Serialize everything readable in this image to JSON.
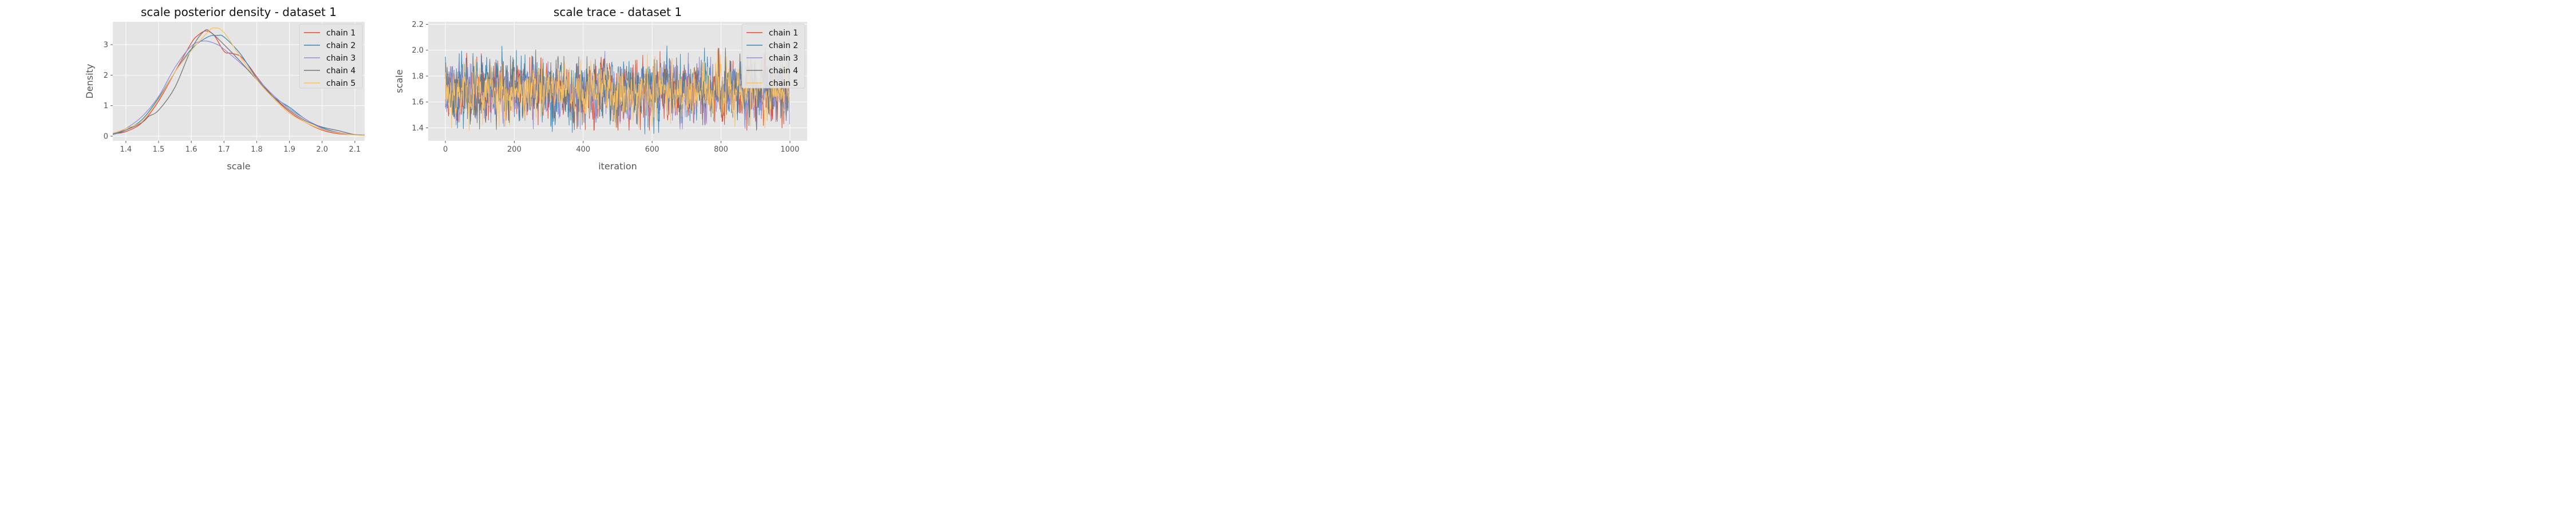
{
  "colors": {
    "background": "#e5e5e5",
    "grid": "#ffffff",
    "series": [
      "#e24a33",
      "#348abd",
      "#988ed5",
      "#777777",
      "#fbc15e"
    ]
  },
  "chart_data": [
    {
      "type": "line",
      "title": "scale posterior density - dataset 1",
      "xlabel": "scale",
      "ylabel": "Density",
      "xlim": [
        1.36,
        2.13
      ],
      "ylim": [
        -0.15,
        3.75
      ],
      "xticks": [
        "1.4",
        "1.5",
        "1.6",
        "1.7",
        "1.8",
        "1.9",
        "2.0",
        "2.1"
      ],
      "yticks": [
        "0",
        "1",
        "2",
        "3"
      ],
      "grid": true,
      "legend": "top-right",
      "series": [
        {
          "name": "chain 1",
          "x": [
            1.36,
            1.4,
            1.45,
            1.5,
            1.55,
            1.6,
            1.62,
            1.645,
            1.67,
            1.7,
            1.72,
            1.75,
            1.78,
            1.8,
            1.85,
            1.9,
            1.95,
            2.0,
            2.05,
            2.1,
            2.13
          ],
          "y": [
            0.08,
            0.15,
            0.45,
            1.15,
            2.1,
            3.05,
            3.3,
            3.45,
            3.3,
            2.78,
            2.72,
            2.62,
            2.25,
            1.95,
            1.3,
            0.8,
            0.45,
            0.2,
            0.08,
            0.05,
            0.03
          ]
        },
        {
          "name": "chain 2",
          "x": [
            1.36,
            1.4,
            1.45,
            1.5,
            1.55,
            1.6,
            1.65,
            1.68,
            1.7,
            1.75,
            1.8,
            1.85,
            1.9,
            1.95,
            2.0,
            2.05,
            2.1,
            2.13
          ],
          "y": [
            0.05,
            0.2,
            0.55,
            1.25,
            2.1,
            2.85,
            3.25,
            3.3,
            3.25,
            2.7,
            1.9,
            1.3,
            0.95,
            0.55,
            0.28,
            0.12,
            0.05,
            0.03
          ]
        },
        {
          "name": "chain 3",
          "x": [
            1.36,
            1.4,
            1.45,
            1.5,
            1.55,
            1.6,
            1.64,
            1.68,
            1.7,
            1.75,
            1.8,
            1.85,
            1.9,
            1.95,
            2.0,
            2.05,
            2.1,
            2.13
          ],
          "y": [
            0.05,
            0.25,
            0.65,
            1.3,
            2.25,
            2.95,
            3.12,
            3.0,
            2.85,
            2.4,
            1.9,
            1.35,
            0.9,
            0.55,
            0.25,
            0.12,
            0.05,
            0.03
          ]
        },
        {
          "name": "chain 4",
          "x": [
            1.36,
            1.4,
            1.45,
            1.47,
            1.5,
            1.55,
            1.6,
            1.64,
            1.66,
            1.7,
            1.75,
            1.8,
            1.85,
            1.9,
            1.95,
            2.0,
            2.05,
            2.1,
            2.13
          ],
          "y": [
            0.08,
            0.2,
            0.45,
            0.65,
            0.85,
            1.6,
            2.85,
            3.45,
            3.4,
            3.0,
            2.45,
            1.85,
            1.3,
            0.85,
            0.5,
            0.3,
            0.18,
            0.05,
            0.03
          ]
        },
        {
          "name": "chain 5",
          "x": [
            1.36,
            1.4,
            1.45,
            1.5,
            1.55,
            1.6,
            1.65,
            1.67,
            1.7,
            1.75,
            1.8,
            1.85,
            1.9,
            1.95,
            2.0,
            2.05,
            2.1,
            2.13
          ],
          "y": [
            0.1,
            0.25,
            0.5,
            1.2,
            2.1,
            2.8,
            3.4,
            3.55,
            3.4,
            2.6,
            1.85,
            1.25,
            0.75,
            0.45,
            0.22,
            0.1,
            0.04,
            0.02
          ]
        }
      ]
    },
    {
      "type": "line",
      "title": "scale trace - dataset 1",
      "xlabel": "iteration",
      "ylabel": "scale",
      "xlim": [
        -50,
        1050
      ],
      "ylim": [
        1.3,
        2.22
      ],
      "xticks": [
        "0",
        "200",
        "400",
        "600",
        "800",
        "1000"
      ],
      "yticks": [
        "1.4",
        "1.6",
        "1.8",
        "2.0",
        "2.2"
      ],
      "grid": true,
      "legend": "top-right",
      "iterations": 1000,
      "series": [
        {
          "name": "chain 1",
          "start": 1.56,
          "mean": 1.68,
          "sd": 0.11,
          "min": 1.38,
          "max": 2.12,
          "seed": 11
        },
        {
          "name": "chain 2",
          "start": 1.95,
          "mean": 1.69,
          "sd": 0.11,
          "min": 1.33,
          "max": 2.09,
          "seed": 23
        },
        {
          "name": "chain 3",
          "start": 1.62,
          "mean": 1.68,
          "sd": 0.1,
          "min": 1.39,
          "max": 2.02,
          "seed": 37
        },
        {
          "name": "chain 4",
          "start": 1.78,
          "mean": 1.69,
          "sd": 0.11,
          "min": 1.38,
          "max": 2.18,
          "seed": 41
        },
        {
          "name": "chain 5",
          "start": 1.7,
          "mean": 1.68,
          "sd": 0.1,
          "min": 1.35,
          "max": 2.02,
          "seed": 53
        }
      ]
    }
  ]
}
